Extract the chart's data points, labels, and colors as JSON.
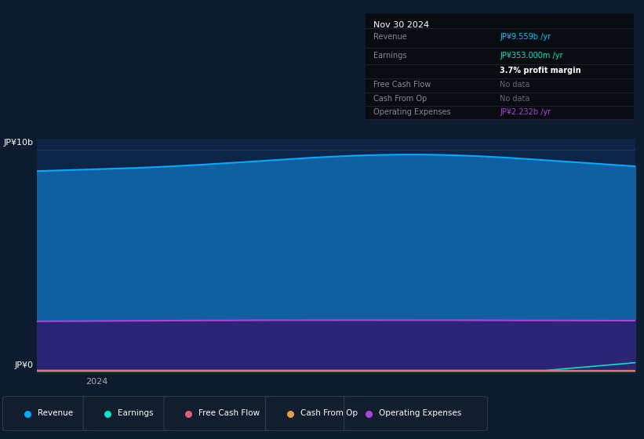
{
  "bg_color": "#0d1b2e",
  "plot_bg": "#0d2547",
  "title_date": "Nov 30 2024",
  "ylabel_top": "JP¥10b",
  "ylabel_bottom": "JP¥0",
  "xlabel": "2024",
  "revenue_fill_color": "#1060a0",
  "revenue_line_color": "#00aaff",
  "op_exp_fill_color": "#2a2575",
  "op_exp_line_color": "#aa44dd",
  "earnings_line_color": "#00e5c8",
  "fcf_line_color": "#e05c7a",
  "cfop_line_color": "#e0a040",
  "grid_color": "#1e3a5a",
  "info_bg": "#080c10",
  "info_border": "#333344",
  "info_rows": [
    {
      "label": "Revenue",
      "value": "JP¥9.559b /yr",
      "label_color": "#888899",
      "value_color": "#00c8ff"
    },
    {
      "label": "Earnings",
      "value": "JP¥353.000m /yr",
      "label_color": "#888899",
      "value_color": "#00e5c8"
    },
    {
      "label": "",
      "value": "3.7% profit margin",
      "label_color": "#888899",
      "value_color": "#ffffff"
    },
    {
      "label": "Free Cash Flow",
      "value": "No data",
      "label_color": "#888899",
      "value_color": "#666677"
    },
    {
      "label": "Cash From Op",
      "value": "No data",
      "label_color": "#888899",
      "value_color": "#666677"
    },
    {
      "label": "Operating Expenses",
      "value": "JP¥2.232b /yr",
      "label_color": "#888899",
      "value_color": "#aa44dd"
    }
  ],
  "legend_items": [
    {
      "label": "Revenue",
      "color": "#00aaff"
    },
    {
      "label": "Earnings",
      "color": "#00e5c8"
    },
    {
      "label": "Free Cash Flow",
      "color": "#e05c7a"
    },
    {
      "label": "Cash From Op",
      "color": "#e0a040"
    },
    {
      "label": "Operating Expenses",
      "color": "#aa44dd"
    }
  ]
}
